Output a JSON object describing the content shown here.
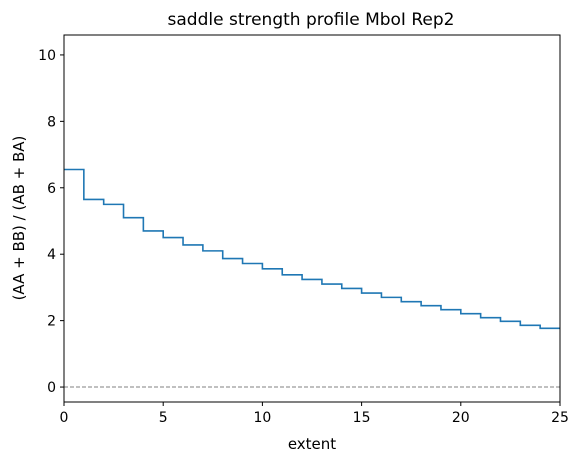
{
  "chart_data": {
    "type": "line",
    "step": "post",
    "title": "saddle strength profile MboI Rep2",
    "xlabel": "extent",
    "ylabel": "(AA + BB) / (AB + BA)",
    "xlim": [
      0,
      25
    ],
    "ylim": [
      -0.45,
      10.6
    ],
    "xticks": [
      0,
      5,
      10,
      15,
      20,
      25
    ],
    "yticks": [
      0,
      2,
      4,
      6,
      8,
      10
    ],
    "grid": false,
    "reference_line": {
      "y": 0,
      "style": "dashed",
      "color": "#808080"
    },
    "series": [
      {
        "color": "#1f77b4",
        "x": [
          0,
          1,
          2,
          3,
          4,
          5,
          6,
          7,
          8,
          9,
          10,
          11,
          12,
          13,
          14,
          15,
          16,
          17,
          18,
          19,
          20,
          21,
          22,
          23,
          24,
          25
        ],
        "values": [
          6.55,
          5.65,
          5.5,
          5.1,
          4.7,
          4.5,
          4.28,
          4.1,
          3.87,
          3.72,
          3.56,
          3.38,
          3.24,
          3.1,
          2.97,
          2.83,
          2.7,
          2.57,
          2.45,
          2.33,
          2.21,
          2.09,
          1.98,
          1.86,
          1.77,
          1.77
        ]
      }
    ]
  }
}
